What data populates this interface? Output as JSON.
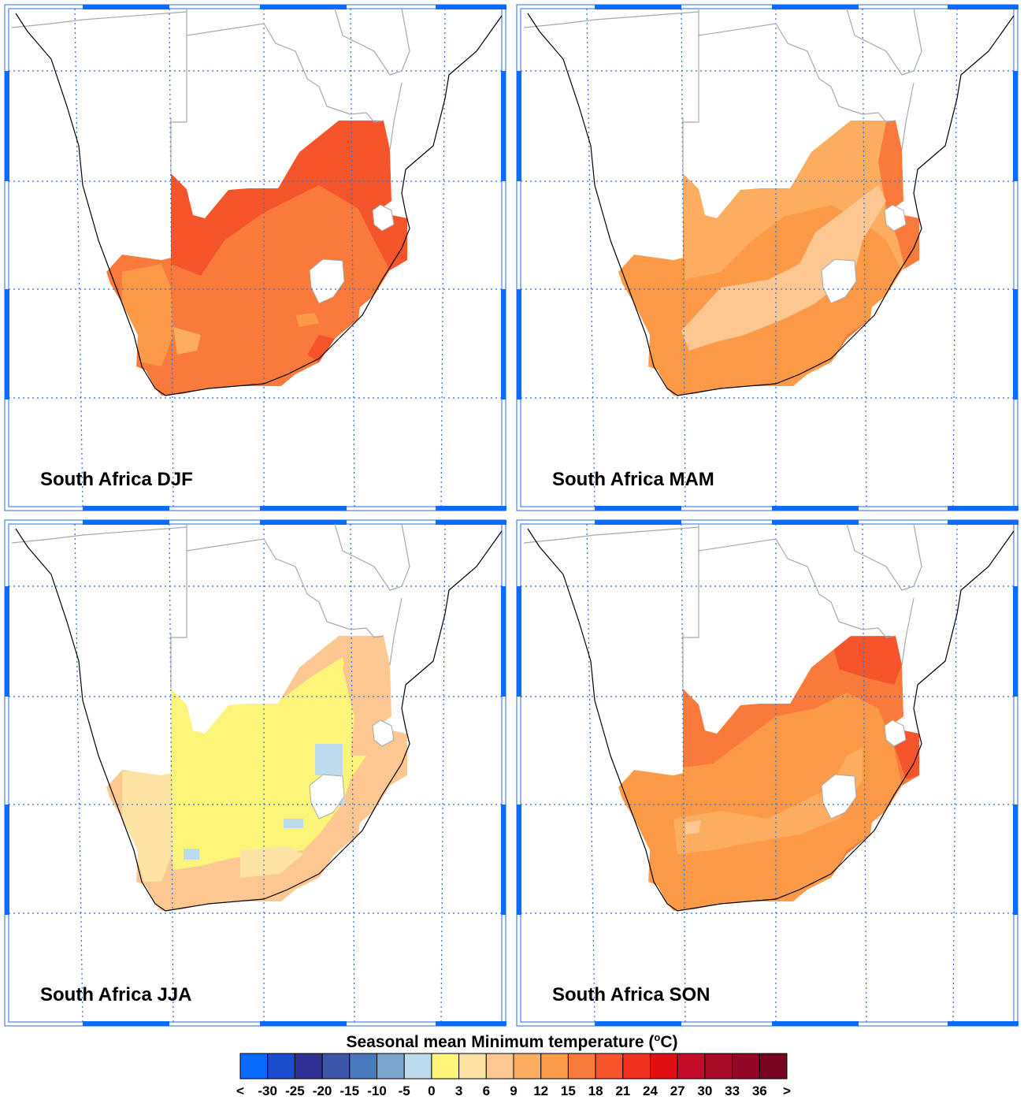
{
  "panels": [
    {
      "title": "South Africa DJF",
      "season": "DJF"
    },
    {
      "title": "South Africa MAM",
      "season": "MAM"
    },
    {
      "title": "South Africa JJA",
      "season": "JJA"
    },
    {
      "title": "South Africa SON",
      "season": "SON"
    }
  ],
  "legend": {
    "title": "Seasonal mean Minimum temperature (",
    "unit_sup": "o",
    "unit_tail": "C)",
    "bins": [
      {
        "tick": "<",
        "color": "#0a6cff"
      },
      {
        "tick": "-30",
        "color": "#1a4ecf"
      },
      {
        "tick": "-25",
        "color": "#2e3191"
      },
      {
        "tick": "-20",
        "color": "#3b55a8"
      },
      {
        "tick": "-15",
        "color": "#4a79bd"
      },
      {
        "tick": "-10",
        "color": "#7ba6d0"
      },
      {
        "tick": "-5",
        "color": "#bcdbec"
      },
      {
        "tick": "0",
        "color": "#fdf57a"
      },
      {
        "tick": "3",
        "color": "#fee3a4"
      },
      {
        "tick": "6",
        "color": "#fdc791"
      },
      {
        "tick": "9",
        "color": "#fdad60"
      },
      {
        "tick": "12",
        "color": "#fc9a48"
      },
      {
        "tick": "15",
        "color": "#f97a3a"
      },
      {
        "tick": "18",
        "color": "#f6552b"
      },
      {
        "tick": "21",
        "color": "#f3311f"
      },
      {
        "tick": "24",
        "color": "#e20f15"
      },
      {
        "tick": "27",
        "color": "#c50c2a"
      },
      {
        "tick": "30",
        "color": "#a90a27"
      },
      {
        "tick": "33",
        "color": "#930826"
      },
      {
        "tick": "36",
        "color": "#7a0520"
      },
      {
        "tick": ">",
        "color": ""
      }
    ]
  },
  "map_colors": {
    "grid": "#2a6ae0",
    "frame_bar": "#0a6cff",
    "coast": "#000000",
    "border": "#a8a8a8",
    "frame": "#2a6ae0"
  }
}
